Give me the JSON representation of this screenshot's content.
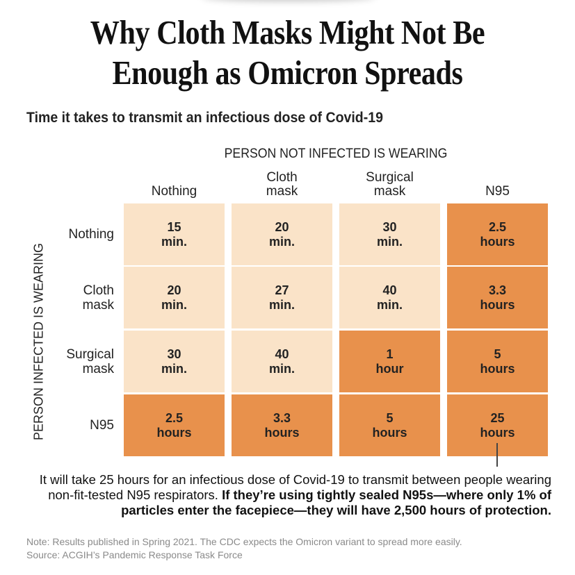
{
  "title_lines": [
    "Why Cloth Masks Might Not Be",
    "Enough as Omicron Spreads"
  ],
  "subtitle": "Time it takes to transmit an infectious dose of Covid-19",
  "chart_data": {
    "type": "table",
    "column_header": "PERSON NOT INFECTED IS WEARING",
    "row_header": "PERSON INFECTED IS WEARING",
    "columns": [
      "Nothing",
      "Cloth\nmask",
      "Surgical\nmask",
      "N95"
    ],
    "rows": [
      "Nothing",
      "Cloth\nmask",
      "Surgical\nmask",
      "N95"
    ],
    "cells": [
      [
        "15\nmin.",
        "20\nmin.",
        "30\nmin.",
        "2.5\nhours"
      ],
      [
        "20\nmin.",
        "27\nmin.",
        "40\nmin.",
        "3.3\nhours"
      ],
      [
        "30\nmin.",
        "40\nmin.",
        "1\nhour",
        "5\nhours"
      ],
      [
        "2.5\nhours",
        "3.3\nhours",
        "5\nhours",
        "25\nhours"
      ]
    ],
    "values_minutes": [
      [
        15,
        20,
        30,
        150
      ],
      [
        20,
        27,
        40,
        198
      ],
      [
        30,
        40,
        60,
        300
      ],
      [
        150,
        198,
        300,
        1500
      ]
    ],
    "highlight_threshold_minutes": 60,
    "colors": {
      "short": "#fae3c8",
      "long": "#e8914c"
    }
  },
  "callout": {
    "normal": "It will take 25 hours for an infectious dose of Covid-19 to transmit between people wearing non-fit-tested N95 respirators. ",
    "bold": "If they’re using tightly sealed N95s—where only 1% of particles enter the facepiece—they will have 2,500 hours of protection."
  },
  "note": "Note: Results published in Spring 2021. The CDC expects the Omicron variant to spread more easily.",
  "source": "Source: ACGIH’s Pandemic Response Task Force"
}
